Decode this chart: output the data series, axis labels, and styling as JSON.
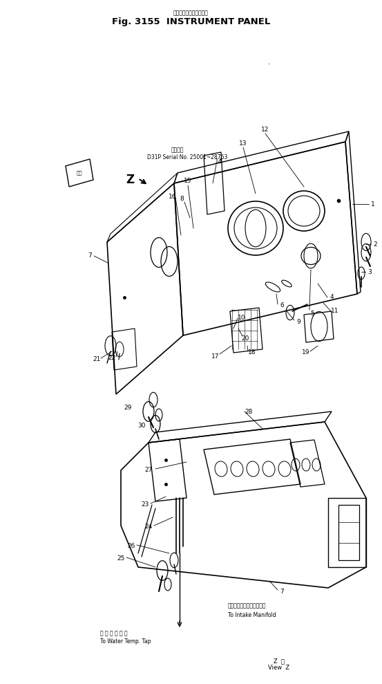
{
  "bg_color": "#ffffff",
  "fig_width": 5.53,
  "fig_height": 9.89,
  "title_jp": "インスツルメントパネル",
  "title_en": "Fig. 3155  INSTRUMENT PANEL",
  "serial_line1": "適用年式",
  "serial_line2": "D31P Serial No. 25001~28763",
  "note_front": "前方",
  "view_label_jp": "Z  横",
  "view_label_en": "View  Z",
  "intake_jp": "インテークマニホールドへ",
  "intake_en": "To Intake Manifold",
  "water_jp": "水 温 取 出 口 へ",
  "water_en": "To Water Temp. Tap"
}
